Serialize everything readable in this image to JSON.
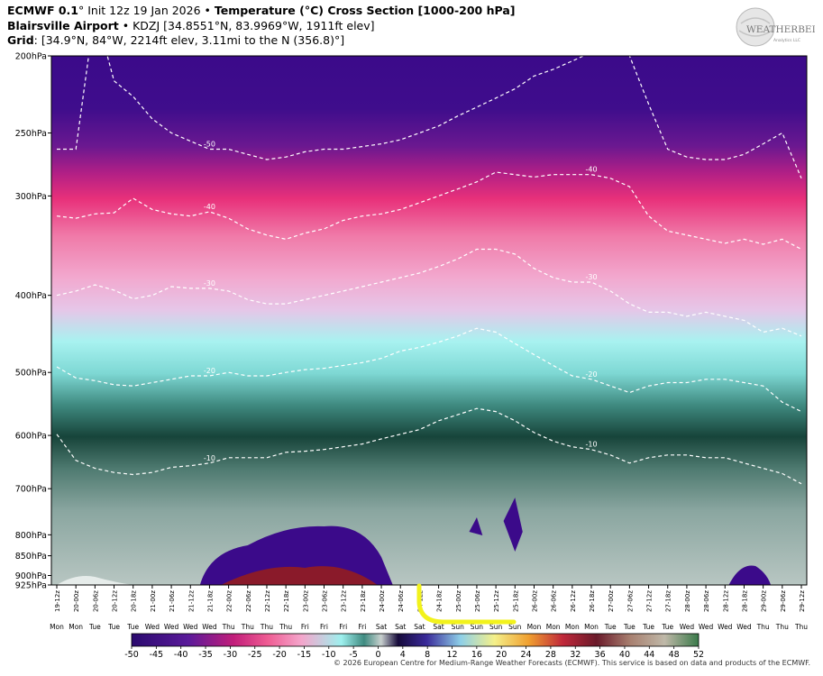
{
  "header": {
    "line1_bold_a": "ECMWF 0.1",
    "line1_deg": "°",
    "line1_init": " Init 12z 19 Jan 2026 • ",
    "line1_bold_b": "Temperature (°C) Cross Section [1000-200 hPa]",
    "line2_bold": "Blairsville Airport",
    "line2_rest": " • KDZJ [34.8551°N, 83.9969°W, 1911ft elev]",
    "line3_bold": "Grid",
    "line3_rest": ": [34.9°N, 84°W, 2214ft elev, 3.11mi to the N (356.8)°]"
  },
  "logo": {
    "text_big": "WEATHERBELL",
    "text_small": "Analytics LLC",
    "icon": "weatherbell-globe-logo"
  },
  "footer": {
    "copyright": "© 2026 European Centre for Medium-Range Weather Forecasts (ECMWF). This service is based on data and products of the ECMWF."
  },
  "chart_data": {
    "type": "heatmap",
    "title": "Temperature (°C) Cross Section [1000-200 hPa]",
    "y_axis": {
      "scale": "log-pressure",
      "range_hpa": [
        925,
        200
      ],
      "ticks": [
        {
          "value": 200,
          "label": "200hPa"
        },
        {
          "value": 250,
          "label": "250hPa"
        },
        {
          "value": 300,
          "label": "300hPa"
        },
        {
          "value": 400,
          "label": "400hPa"
        },
        {
          "value": 500,
          "label": "500hPa"
        },
        {
          "value": 600,
          "label": "600hPa"
        },
        {
          "value": 700,
          "label": "700hPa"
        },
        {
          "value": 800,
          "label": "800hPa"
        },
        {
          "value": 850,
          "label": "850hPa"
        },
        {
          "value": 900,
          "label": "900hPa"
        },
        {
          "value": 925,
          "label": "925hPa"
        }
      ]
    },
    "x_axis": {
      "times": [
        "19-12z",
        "20-00z",
        "20-06z",
        "20-12z",
        "20-18z",
        "21-00z",
        "21-06z",
        "21-12z",
        "21-18z",
        "22-00z",
        "22-06z",
        "22-12z",
        "22-18z",
        "23-00z",
        "23-06z",
        "23-12z",
        "23-18z",
        "24-00z",
        "24-06z",
        "24-12z",
        "24-18z",
        "25-00z",
        "25-06z",
        "25-12z",
        "25-18z",
        "26-00z",
        "26-06z",
        "26-12z",
        "26-18z",
        "27-00z",
        "27-06z",
        "27-12z",
        "27-18z",
        "28-00z",
        "28-06z",
        "28-12z",
        "28-18z",
        "29-00z",
        "29-06z",
        "29-12z"
      ],
      "days": [
        "Mon",
        "Mon",
        "Tue",
        "Tue",
        "Tue",
        "Wed",
        "Wed",
        "Wed",
        "Wed",
        "Thu",
        "Thu",
        "Thu",
        "Thu",
        "Fri",
        "Fri",
        "Fri",
        "Fri",
        "Sat",
        "Sat",
        "Sat",
        "Sat",
        "Sun",
        "Sun",
        "Sun",
        "Sun",
        "Mon",
        "Mon",
        "Mon",
        "Mon",
        "Tue",
        "Tue",
        "Tue",
        "Tue",
        "Wed",
        "Wed",
        "Wed",
        "Wed",
        "Thu",
        "Thu",
        "Thu"
      ]
    },
    "contours": [
      {
        "value": -50,
        "label": "-50",
        "pressure_hpa": [
          262,
          262,
          175,
          215,
          225,
          240,
          250,
          256,
          262,
          262,
          266,
          270,
          268,
          264,
          262,
          262,
          260,
          258,
          255,
          250,
          245,
          238,
          232,
          226,
          220,
          212,
          208,
          203,
          198,
          192,
          200,
          230,
          262,
          268,
          270,
          270,
          266,
          258,
          250,
          285
        ]
      },
      {
        "value": -40,
        "label": "-40",
        "pressure_hpa": [
          318,
          320,
          316,
          315,
          302,
          312,
          316,
          318,
          314,
          320,
          330,
          336,
          340,
          334,
          330,
          322,
          318,
          316,
          312,
          306,
          300,
          294,
          288,
          280,
          282,
          284,
          282,
          282,
          282,
          285,
          292,
          318,
          332,
          336,
          340,
          344,
          340,
          345,
          340,
          350
        ]
      },
      {
        "value": -30,
        "label": "-30",
        "pressure_hpa": [
          400,
          395,
          388,
          394,
          404,
          400,
          390,
          392,
          392,
          395,
          405,
          410,
          410,
          405,
          400,
          395,
          390,
          385,
          380,
          375,
          368,
          360,
          350,
          350,
          355,
          370,
          380,
          385,
          385,
          395,
          410,
          420,
          420,
          425,
          420,
          425,
          430,
          445,
          440,
          450
        ]
      },
      {
        "value": -20,
        "label": "-20",
        "pressure_hpa": [
          492,
          508,
          512,
          518,
          520,
          515,
          510,
          505,
          505,
          500,
          505,
          505,
          500,
          496,
          494,
          490,
          486,
          480,
          470,
          465,
          458,
          450,
          440,
          445,
          460,
          475,
          490,
          505,
          510,
          520,
          530,
          520,
          515,
          515,
          510,
          510,
          515,
          520,
          545,
          560
        ]
      },
      {
        "value": -10,
        "label": "-10",
        "pressure_hpa": [
          598,
          645,
          660,
          668,
          672,
          668,
          658,
          655,
          650,
          640,
          640,
          640,
          630,
          628,
          625,
          620,
          615,
          606,
          598,
          590,
          575,
          565,
          555,
          560,
          575,
          595,
          610,
          620,
          625,
          635,
          650,
          640,
          635,
          635,
          640,
          640,
          650,
          660,
          670,
          690
        ]
      }
    ],
    "colorbar": {
      "label_values": [
        -50,
        -45,
        -40,
        -35,
        -30,
        -25,
        -20,
        -15,
        -10,
        -5,
        0,
        4,
        8,
        12,
        16,
        20,
        24,
        28,
        32,
        36,
        40,
        44,
        48,
        52
      ],
      "unit": "°C"
    },
    "colors": {
      "cold_purple": "#3b0a8a",
      "magenta": "#e8307a",
      "pink": "#f2a9cf",
      "cyan": "#9ef0ee",
      "dark_green": "#17443a",
      "gray_green": "#a9b8b4",
      "warm_red": "#8a1a2a",
      "contour": "#ffffff",
      "annotation_yellow": "#f2f21c"
    }
  }
}
